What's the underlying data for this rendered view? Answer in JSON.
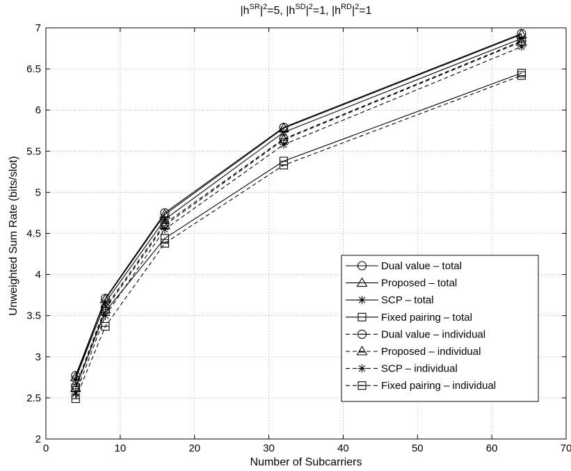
{
  "chart_data": {
    "type": "line",
    "title": "|h^SR|^2=5, |h^SD|^2=1, |h^RD|^2=1",
    "title_parts": {
      "p1": "|h",
      "s1": "SR",
      "p2": "|",
      "s2": "2",
      "p3": "=5, |h",
      "s3": "SD",
      "p4": "|",
      "s4": "2",
      "p5": "=1, |h",
      "s5": "RD",
      "p6": "|",
      "s6": "2",
      "p7": "=1"
    },
    "xlabel": "Number of Subcarriers",
    "ylabel": "Unweighted Sum Rate (bits/slot)",
    "xlim": [
      0,
      70
    ],
    "ylim": [
      2,
      7
    ],
    "xticks": [
      "0",
      "10",
      "20",
      "30",
      "40",
      "50",
      "60",
      "70"
    ],
    "yticks": [
      "2",
      "2.5",
      "3",
      "3.5",
      "4",
      "4.5",
      "5",
      "5.5",
      "6",
      "6.5",
      "7"
    ],
    "grid": true,
    "legend_position": "bottom-right",
    "x": [
      4,
      8,
      16,
      32,
      64
    ],
    "series": [
      {
        "name": "Dual value – total",
        "marker": "circle",
        "dash": false,
        "values": [
          2.77,
          3.71,
          4.75,
          5.79,
          6.93
        ]
      },
      {
        "name": "Proposed – total",
        "marker": "triangle",
        "dash": false,
        "values": [
          2.75,
          3.7,
          4.73,
          5.78,
          6.92
        ]
      },
      {
        "name": "SCP – total",
        "marker": "star",
        "dash": false,
        "values": [
          2.73,
          3.66,
          4.67,
          5.73,
          6.87
        ]
      },
      {
        "name": "Fixed pairing – total",
        "marker": "square",
        "dash": false,
        "values": [
          2.62,
          3.55,
          4.44,
          5.38,
          6.45
        ]
      },
      {
        "name": "Dual value – individual",
        "marker": "circle-minus",
        "dash": true,
        "values": [
          2.64,
          3.6,
          4.62,
          5.65,
          6.84
        ]
      },
      {
        "name": "Proposed – individual",
        "marker": "triangle-minus",
        "dash": true,
        "values": [
          2.62,
          3.58,
          4.6,
          5.64,
          6.83
        ]
      },
      {
        "name": "SCP – individual",
        "marker": "star",
        "dash": true,
        "values": [
          2.55,
          3.5,
          4.55,
          5.58,
          6.77
        ]
      },
      {
        "name": "Fixed pairing – individual",
        "marker": "square-minus",
        "dash": true,
        "values": [
          2.49,
          3.37,
          4.38,
          5.33,
          6.42
        ]
      }
    ]
  }
}
